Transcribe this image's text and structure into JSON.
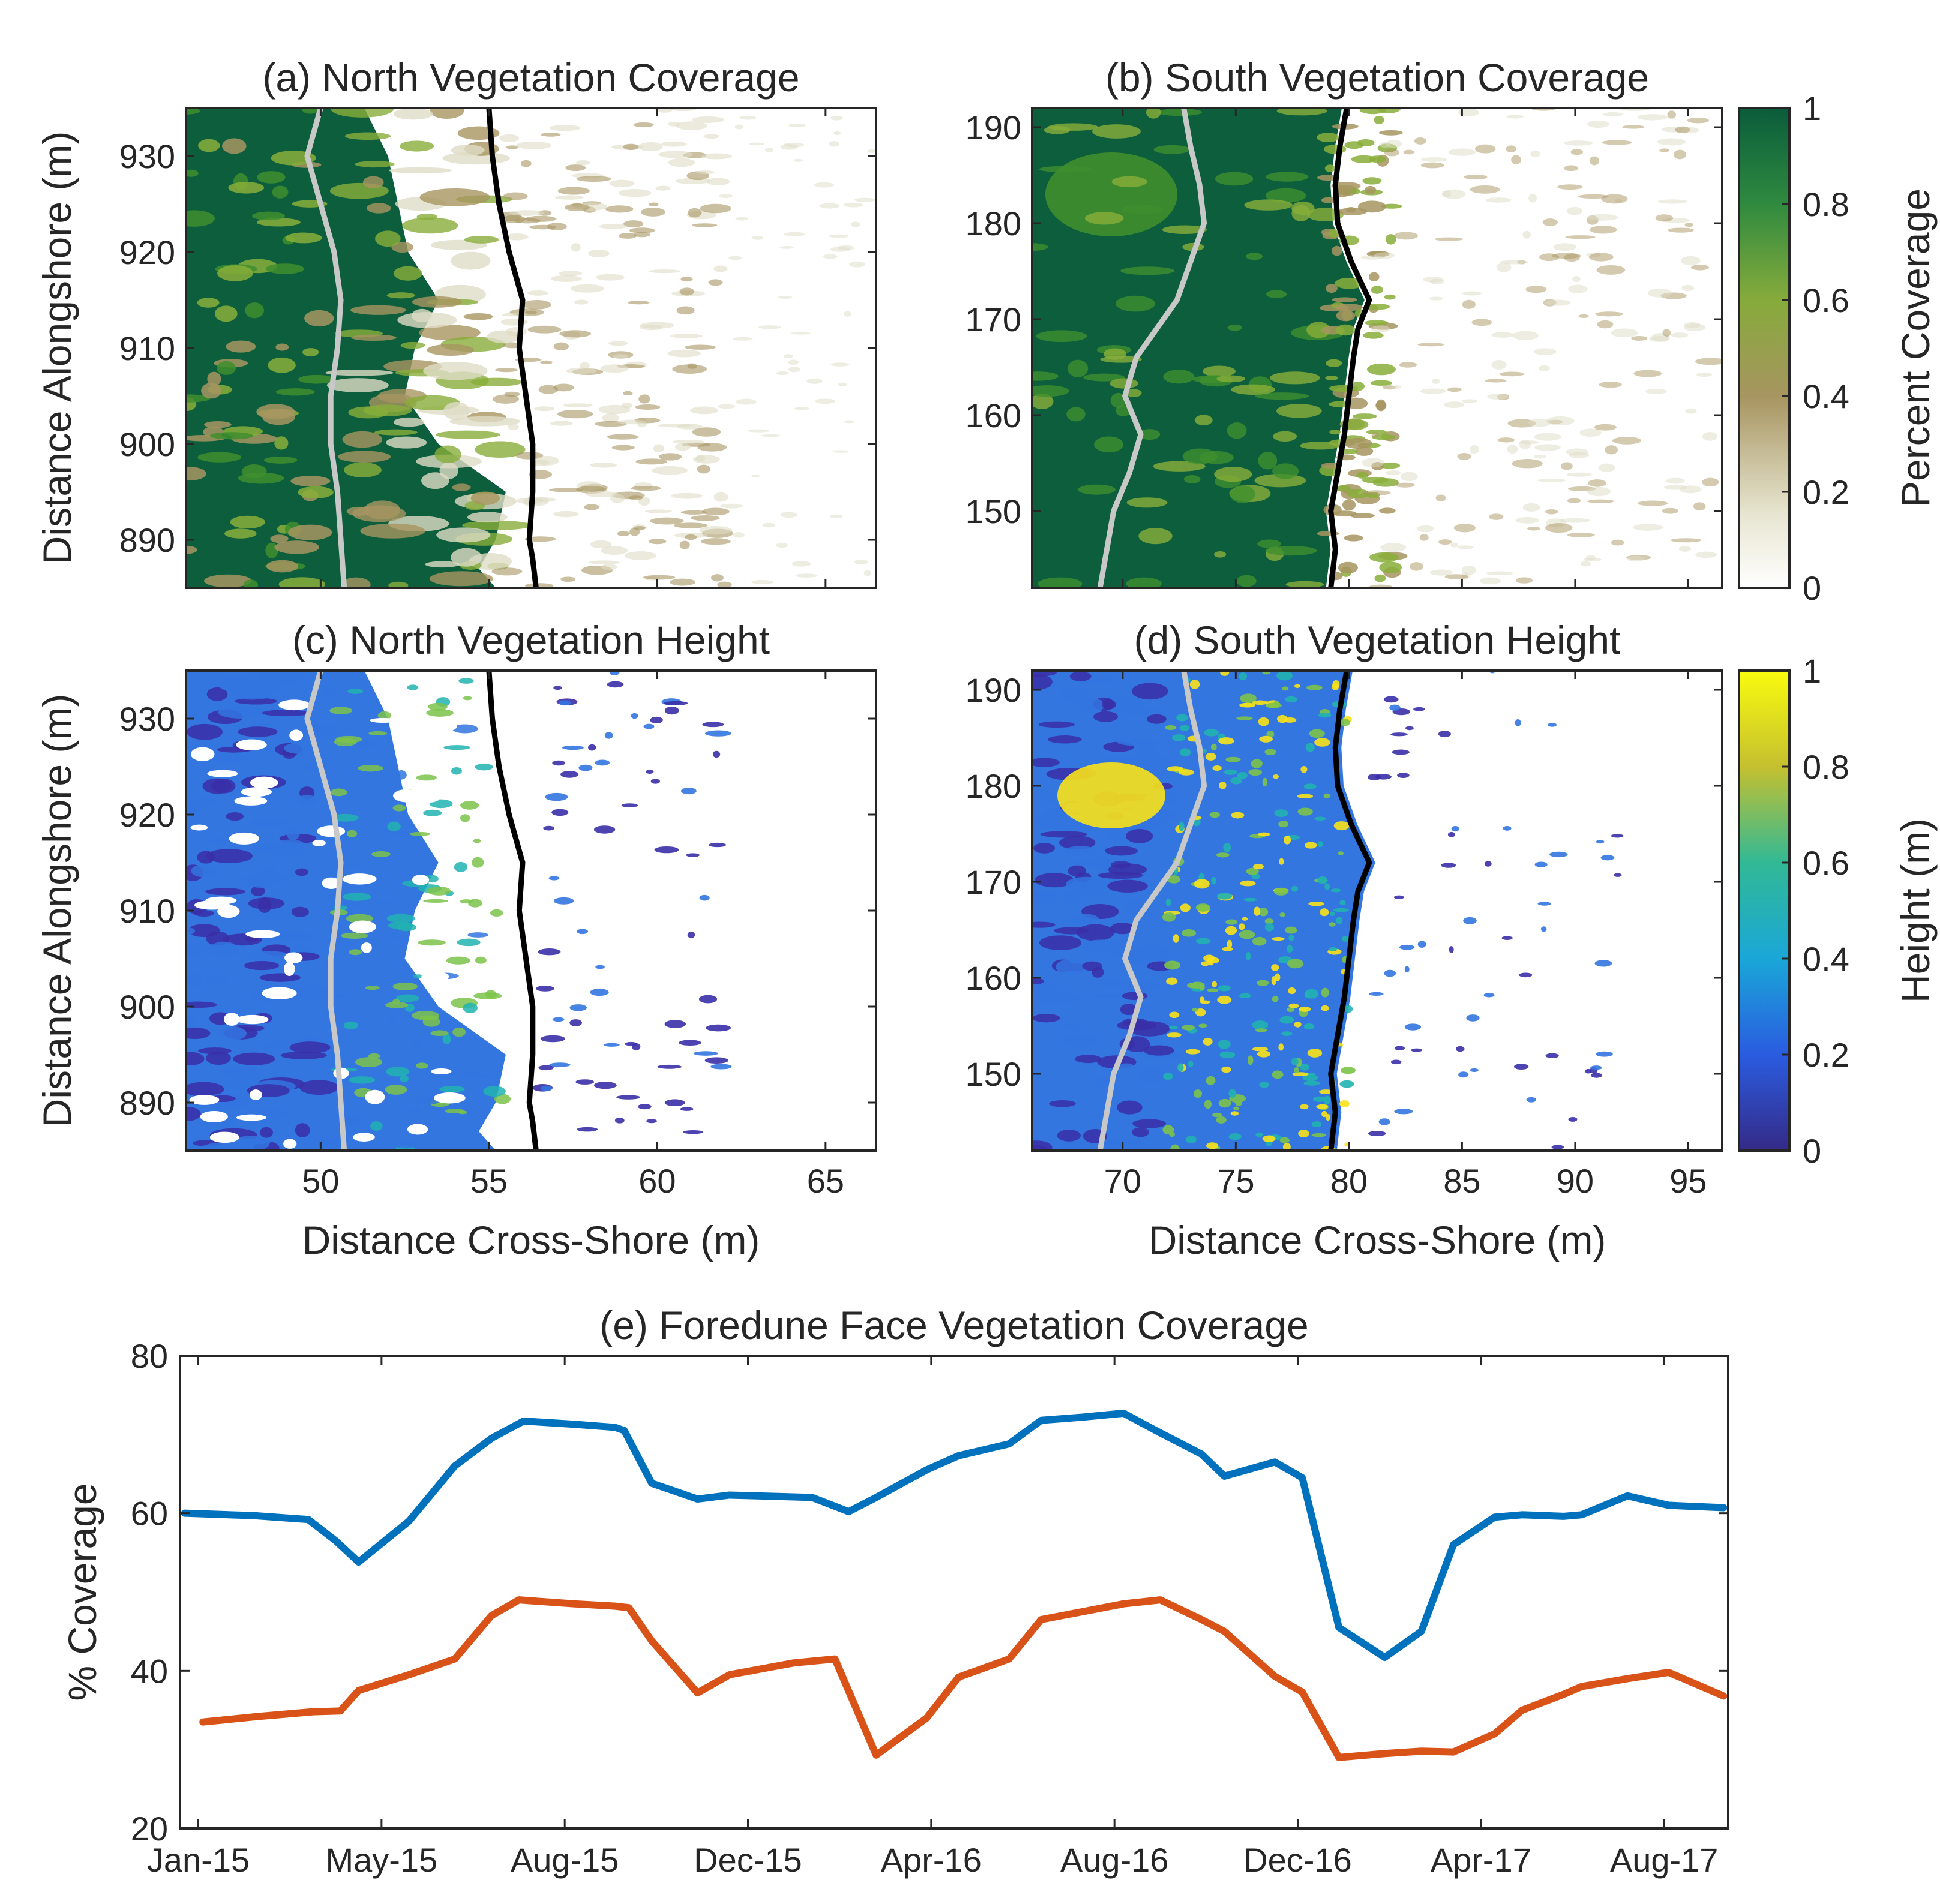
{
  "colors": {
    "dune_dark": "#0c5e3c",
    "veg_green": "#3f8e2e",
    "veg_light": "#88ae3a",
    "veg_tan": "#a79560",
    "veg_pale": "#dedcc5",
    "height_navy": "#3a2fa8",
    "height_blue": "#3376e0",
    "height_teal": "#21b3b0",
    "height_green": "#7cc34a",
    "height_yellow": "#f9e21a",
    "line_gray": "#c8c8c8",
    "line_black": "#000000",
    "series_blue": "#0072bd",
    "series_orange": "#d95319"
  },
  "chart_data": [
    {
      "id": "a",
      "type": "heatmap",
      "title": "(a) North Vegetation Coverage",
      "xlabel": "",
      "ylabel": "Distance Alongshore (m)",
      "xlim": [
        46,
        66.5
      ],
      "ylim": [
        885,
        935
      ],
      "xticks": [
        "50",
        "55",
        "60",
        "65"
      ],
      "show_xtick_labels": false,
      "yticks": [
        "890",
        "900",
        "910",
        "920",
        "930"
      ],
      "gray_line": {
        "x": [
          50.0,
          49.6,
          50.0,
          50.4,
          50.6,
          50.5,
          50.3,
          50.3,
          50.5,
          50.6,
          50.7
        ],
        "y": [
          935,
          930,
          925,
          920,
          915,
          910,
          905,
          900,
          895,
          890,
          885
        ]
      },
      "black_line": {
        "x": [
          55.0,
          55.1,
          55.3,
          55.6,
          56.0,
          55.9,
          56.1,
          56.3,
          56.3,
          56.2,
          56.3,
          56.4
        ],
        "y": [
          935,
          930,
          925,
          920,
          915,
          910,
          905,
          900,
          895,
          890,
          888,
          885
        ]
      },
      "vegetation_edge": {
        "x": [
          51.3,
          52.0,
          52.3,
          52.6,
          53.5,
          52.8,
          52.5,
          53.5,
          55.5,
          55.2,
          54.7,
          55.2
        ],
        "y": [
          935,
          930,
          925,
          920,
          915,
          910,
          905,
          900,
          895,
          890,
          887,
          885
        ]
      }
    },
    {
      "id": "b",
      "type": "heatmap",
      "title": "(b) South Vegetation Coverage",
      "xlabel": "",
      "ylabel": "",
      "xlim": [
        66,
        96.5
      ],
      "ylim": [
        142,
        192
      ],
      "xticks": [
        "70",
        "75",
        "80",
        "85",
        "90",
        "95"
      ],
      "show_xtick_labels": false,
      "yticks": [
        "150",
        "160",
        "170",
        "180",
        "190"
      ],
      "colorbar": {
        "label": "Percent Coverage",
        "ticks": [
          "0",
          "0.2",
          "0.4",
          "0.6",
          "0.8",
          "1"
        ],
        "range": [
          0,
          1
        ]
      },
      "gray_line": {
        "x": [
          72.7,
          73.0,
          73.4,
          73.6,
          73.0,
          72.4,
          71.5,
          70.6,
          70.1,
          70.8,
          70.3,
          69.6,
          69.3,
          69.0
        ],
        "y": [
          192,
          188,
          184,
          180,
          176,
          172,
          169,
          166,
          162,
          158,
          154,
          150,
          146,
          142
        ]
      },
      "black_line": {
        "x": [
          79.9,
          79.6,
          79.4,
          79.5,
          80.1,
          80.9,
          80.4,
          80.2,
          80.0,
          79.8,
          79.5,
          79.2,
          79.4,
          79.2
        ],
        "y": [
          192,
          188,
          184,
          180,
          176,
          172,
          169,
          166,
          162,
          158,
          154,
          150,
          146,
          142
        ]
      }
    },
    {
      "id": "c",
      "type": "heatmap",
      "title": "(c) North Vegetation Height",
      "xlabel": "Distance Cross-Shore (m)",
      "ylabel": "Distance Alongshore (m)",
      "xlim": [
        46,
        66.5
      ],
      "ylim": [
        885,
        935
      ],
      "xticks": [
        "50",
        "55",
        "60",
        "65"
      ],
      "show_xtick_labels": true,
      "yticks": [
        "890",
        "900",
        "910",
        "920",
        "930"
      ]
    },
    {
      "id": "d",
      "type": "heatmap",
      "title": "(d) South Vegetation Height",
      "xlabel": "Distance Cross-Shore (m)",
      "ylabel": "",
      "xlim": [
        66,
        96.5
      ],
      "ylim": [
        142,
        192
      ],
      "xticks": [
        "70",
        "75",
        "80",
        "85",
        "90",
        "95"
      ],
      "show_xtick_labels": true,
      "yticks": [
        "150",
        "160",
        "170",
        "180",
        "190"
      ],
      "colorbar": {
        "label": "Height (m)",
        "ticks": [
          "0",
          "0.2",
          "0.4",
          "0.6",
          "0.8",
          "1"
        ],
        "range": [
          0,
          1
        ]
      }
    },
    {
      "id": "e",
      "type": "line",
      "title": "(e) Foredune Face Vegetation Coverage",
      "xlabel": "",
      "ylabel": "% Coverage",
      "xlim": [
        -0.4,
        33.4
      ],
      "ylim": [
        20,
        80
      ],
      "yticks": [
        "20",
        "40",
        "60",
        "80"
      ],
      "xtick_positions": [
        0,
        4,
        8,
        12,
        16,
        20,
        24,
        28,
        32
      ],
      "xtick_labels": [
        "Jan-15",
        "May-15",
        "Aug-15",
        "Dec-15",
        "Apr-16",
        "Aug-16",
        "Dec-16",
        "Apr-17",
        "Aug-17"
      ],
      "series": [
        {
          "name": "Blue series",
          "x": [
            -0.3,
            1.2,
            2.4,
            3.0,
            3.5,
            4.6,
            5.6,
            6.4,
            7.1,
            8.2,
            9.1,
            9.3,
            9.9,
            10.9,
            11.6,
            13.4,
            14.2,
            14.8,
            15.9,
            16.6,
            17.7,
            18.4,
            19.3,
            20.2,
            21.0,
            21.9,
            22.4,
            23.5,
            24.1,
            24.9,
            25.9,
            26.7,
            27.4,
            28.3,
            28.9,
            29.8,
            30.2,
            31.2,
            32.1,
            33.3
          ],
          "values": [
            60,
            59.7,
            59.2,
            56.5,
            53.8,
            59,
            66,
            69.5,
            71.7,
            71.3,
            70.9,
            70.5,
            63.8,
            61.8,
            62.3,
            62,
            60.2,
            62,
            65.5,
            67.3,
            68.8,
            71.8,
            72.2,
            72.7,
            70.2,
            67.5,
            64.7,
            66.5,
            64.5,
            45.5,
            41.7,
            45,
            56,
            59.5,
            59.8,
            59.6,
            59.8,
            62.2,
            61,
            60.7
          ]
        },
        {
          "name": "Orange series",
          "x": [
            0.1,
            1.3,
            2.5,
            3.1,
            3.5,
            4.6,
            5.6,
            6.4,
            7.0,
            8.2,
            9.1,
            9.4,
            9.9,
            10.9,
            11.6,
            13.0,
            13.9,
            14.8,
            15.9,
            16.6,
            17.7,
            18.4,
            19.3,
            20.2,
            21.0,
            21.9,
            22.4,
            23.5,
            24.1,
            24.9,
            25.9,
            26.7,
            27.4,
            28.3,
            28.9,
            29.8,
            30.2,
            31.2,
            32.1,
            33.3
          ],
          "values": [
            33.5,
            34.2,
            34.8,
            34.9,
            37.5,
            39.5,
            41.5,
            47,
            49,
            48.5,
            48.2,
            48,
            43.8,
            37.2,
            39.5,
            41,
            41.5,
            29.3,
            34,
            39.2,
            41.5,
            46.5,
            47.5,
            48.5,
            49,
            46.5,
            45,
            39.3,
            37.3,
            29,
            29.5,
            29.8,
            29.7,
            32,
            35,
            37,
            38,
            39,
            39.8,
            36.8
          ]
        }
      ]
    }
  ]
}
